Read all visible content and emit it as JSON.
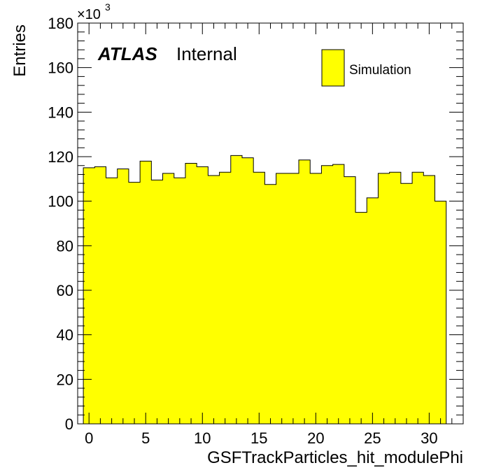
{
  "chart_data": {
    "type": "bar",
    "style": "histogram-step",
    "xlabel": "GSFTrackParticles_hit_modulePhi",
    "ylabel": "Entries",
    "y_multiplier_label": "×10",
    "y_multiplier_exp": "3",
    "xlim": [
      -1,
      33
    ],
    "ylim": [
      0,
      180
    ],
    "x_major_ticks": [
      0,
      5,
      10,
      15,
      20,
      25,
      30
    ],
    "x_tick_labels": [
      "0",
      "5",
      "10",
      "15",
      "20",
      "25",
      "30"
    ],
    "y_major_ticks": [
      0,
      20,
      40,
      60,
      80,
      100,
      120,
      140,
      160,
      180
    ],
    "y_tick_labels": [
      "0",
      "20",
      "40",
      "60",
      "80",
      "100",
      "120",
      "140",
      "160",
      "180"
    ],
    "bin_width": 1,
    "bin_centers": [
      0,
      1,
      2,
      3,
      4,
      5,
      6,
      7,
      8,
      9,
      10,
      11,
      12,
      13,
      14,
      15,
      16,
      17,
      18,
      19,
      20,
      21,
      22,
      23,
      24,
      25,
      26,
      27,
      28,
      29,
      30,
      31
    ],
    "values": [
      115,
      115.5,
      110.5,
      114.5,
      108.5,
      118,
      109.5,
      112.5,
      110.5,
      117,
      115.5,
      111.5,
      113,
      120.5,
      119.5,
      113,
      107.5,
      112.5,
      112.5,
      118.5,
      112.5,
      116,
      116.5,
      111,
      95,
      101.5,
      112.5,
      113,
      108,
      113,
      111.5,
      100
    ],
    "fill_color": "#ffff00",
    "line_color": "#000000",
    "legend": {
      "position": "top-right",
      "entries": [
        {
          "name": "Simulation",
          "color": "#ffff00"
        }
      ]
    },
    "annotation": {
      "bold": "ATLAS",
      "text": "Internal"
    },
    "grid": false
  }
}
